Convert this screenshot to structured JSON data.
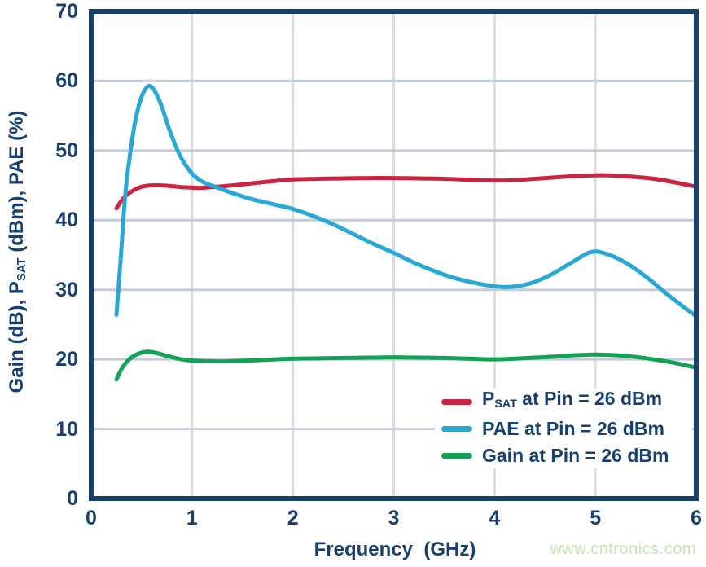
{
  "watermark": "www.cntronics.com",
  "colors": {
    "navy": "#17406E",
    "red": "#CB2443",
    "blue": "#29A8D5",
    "green": "#12A155",
    "grid_horizontal": "#C2CCD9",
    "grid_vertical": "#DADCDF",
    "background": "#FFFFFF",
    "watermark_green": "#C3E7B0"
  },
  "chart_data": {
    "type": "line",
    "title": "",
    "xlabel": "Frequency  (GHz)",
    "ylabel": "Gain (dB), PSAT (dBm), PAE (%)",
    "ylabel_parts": {
      "pre": "Gain (dB), P",
      "sub": "SAT",
      "post": " (dBm), PAE (%)"
    },
    "xlim": [
      0,
      6
    ],
    "ylim": [
      0,
      70
    ],
    "x_ticks": [
      0,
      1,
      2,
      3,
      4,
      5,
      6
    ],
    "y_ticks": [
      0,
      10,
      20,
      30,
      40,
      50,
      60,
      70
    ],
    "grid": true,
    "legend_position": "inside-bottom-right",
    "series": [
      {
        "name": "PSAT at Pin = 26 dBm",
        "label_parts": {
          "pre": "P",
          "sub": "SAT",
          "post": " at Pin = 26 dBm"
        },
        "color": "#CB2443",
        "points": [
          [
            0.25,
            41.7
          ],
          [
            0.3,
            42.8
          ],
          [
            0.35,
            43.6
          ],
          [
            0.42,
            44.3
          ],
          [
            0.5,
            44.8
          ],
          [
            0.6,
            45.0
          ],
          [
            0.75,
            44.95
          ],
          [
            0.9,
            44.75
          ],
          [
            1.05,
            44.65
          ],
          [
            1.2,
            44.75
          ],
          [
            1.4,
            45.0
          ],
          [
            1.6,
            45.3
          ],
          [
            1.8,
            45.6
          ],
          [
            2.0,
            45.85
          ],
          [
            2.25,
            45.95
          ],
          [
            2.5,
            46.0
          ],
          [
            2.75,
            46.05
          ],
          [
            3.0,
            46.05
          ],
          [
            3.25,
            46.0
          ],
          [
            3.5,
            45.95
          ],
          [
            3.75,
            45.8
          ],
          [
            4.0,
            45.7
          ],
          [
            4.2,
            45.75
          ],
          [
            4.4,
            45.95
          ],
          [
            4.6,
            46.15
          ],
          [
            4.8,
            46.35
          ],
          [
            5.0,
            46.45
          ],
          [
            5.2,
            46.4
          ],
          [
            5.4,
            46.2
          ],
          [
            5.6,
            45.9
          ],
          [
            5.8,
            45.4
          ],
          [
            6.0,
            44.8
          ]
        ]
      },
      {
        "name": "PAE at Pin = 26 dBm",
        "label_parts": {
          "pre": "PAE",
          "sub": "",
          "post": " at Pin = 26 dBm"
        },
        "color": "#29A8D5",
        "points": [
          [
            0.25,
            26.4
          ],
          [
            0.29,
            34.0
          ],
          [
            0.34,
            44.0
          ],
          [
            0.4,
            51.0
          ],
          [
            0.46,
            55.8
          ],
          [
            0.52,
            58.4
          ],
          [
            0.58,
            59.3
          ],
          [
            0.64,
            58.3
          ],
          [
            0.7,
            56.3
          ],
          [
            0.78,
            52.8
          ],
          [
            0.88,
            49.3
          ],
          [
            1.0,
            46.7
          ],
          [
            1.12,
            45.4
          ],
          [
            1.25,
            44.7
          ],
          [
            1.4,
            43.9
          ],
          [
            1.6,
            43.0
          ],
          [
            1.8,
            42.3
          ],
          [
            2.0,
            41.6
          ],
          [
            2.2,
            40.6
          ],
          [
            2.4,
            39.4
          ],
          [
            2.6,
            38.0
          ],
          [
            2.8,
            36.6
          ],
          [
            3.0,
            35.3
          ],
          [
            3.2,
            33.9
          ],
          [
            3.4,
            32.7
          ],
          [
            3.6,
            31.7
          ],
          [
            3.8,
            31.0
          ],
          [
            4.0,
            30.5
          ],
          [
            4.15,
            30.4
          ],
          [
            4.35,
            30.9
          ],
          [
            4.55,
            32.1
          ],
          [
            4.75,
            33.8
          ],
          [
            4.95,
            35.4
          ],
          [
            5.1,
            35.2
          ],
          [
            5.3,
            33.9
          ],
          [
            5.5,
            31.9
          ],
          [
            5.7,
            29.5
          ],
          [
            5.85,
            27.8
          ],
          [
            6.0,
            26.2
          ]
        ]
      },
      {
        "name": "Gain at Pin = 26 dBm",
        "label_parts": {
          "pre": "Gain",
          "sub": "",
          "post": " at Pin = 26 dBm"
        },
        "color": "#12A155",
        "points": [
          [
            0.25,
            17.1
          ],
          [
            0.3,
            18.6
          ],
          [
            0.37,
            19.9
          ],
          [
            0.45,
            20.7
          ],
          [
            0.55,
            21.1
          ],
          [
            0.65,
            20.9
          ],
          [
            0.75,
            20.5
          ],
          [
            0.85,
            20.15
          ],
          [
            0.95,
            19.9
          ],
          [
            1.1,
            19.75
          ],
          [
            1.3,
            19.7
          ],
          [
            1.5,
            19.8
          ],
          [
            1.75,
            19.95
          ],
          [
            2.0,
            20.1
          ],
          [
            2.25,
            20.15
          ],
          [
            2.5,
            20.2
          ],
          [
            2.75,
            20.25
          ],
          [
            3.0,
            20.3
          ],
          [
            3.25,
            20.25
          ],
          [
            3.5,
            20.2
          ],
          [
            3.75,
            20.1
          ],
          [
            4.0,
            20.0
          ],
          [
            4.2,
            20.1
          ],
          [
            4.4,
            20.25
          ],
          [
            4.6,
            20.4
          ],
          [
            4.8,
            20.6
          ],
          [
            5.0,
            20.7
          ],
          [
            5.2,
            20.6
          ],
          [
            5.4,
            20.35
          ],
          [
            5.6,
            19.95
          ],
          [
            5.8,
            19.45
          ],
          [
            6.0,
            18.8
          ]
        ]
      }
    ]
  }
}
